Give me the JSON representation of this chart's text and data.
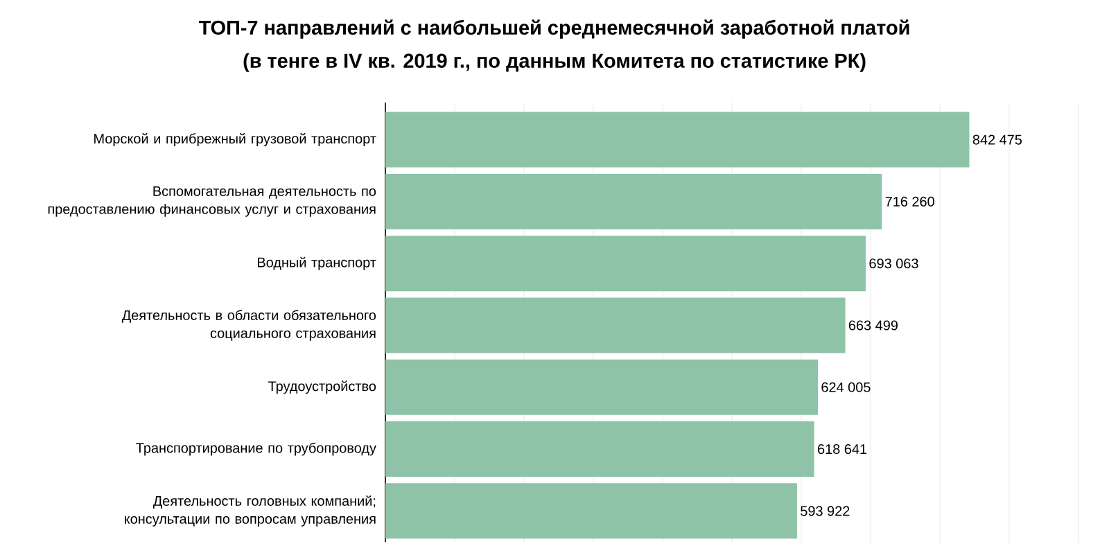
{
  "chart_data": {
    "type": "bar",
    "orientation": "horizontal",
    "title": "ТОП-7 направлений с наибольшей среднемесячной заработной платой",
    "subtitle": "(в тенге в IV кв. 2019 г., по данным Комитета по статистике РК)",
    "categories": [
      "Морской и прибрежный грузовой транспорт",
      "Вспомогательная деятельность по предоставлению финансовых услуг и страхования",
      "Водный транспорт",
      "Деятельность в области обязательного социального страхования",
      "Трудоустройство",
      "Транспортирование по трубопроводу",
      "Деятельность головных компаний; консультации по вопросам управления"
    ],
    "values": [
      842475,
      716260,
      693063,
      663499,
      624005,
      618641,
      593922
    ],
    "value_labels": [
      "842 475",
      "716 260",
      "693 063",
      "663 499",
      "624 005",
      "618 641",
      "593 922"
    ],
    "color": "#8fc3a8",
    "xlim": [
      0,
      1000000
    ],
    "xticks": [
      {
        "value": 0,
        "label": null
      },
      {
        "value": 100000,
        "label": null
      },
      {
        "value": 200000,
        "label": null
      },
      {
        "value": 300000,
        "label": null
      },
      {
        "value": 400000,
        "label": null
      },
      {
        "value": 500000,
        "label": null
      },
      {
        "value": 600000,
        "label": null
      },
      {
        "value": 700000,
        "label": null
      },
      {
        "value": 800000,
        "label": null
      },
      {
        "value": 900000,
        "label": null
      },
      {
        "value": 1000000,
        "label": null
      }
    ],
    "grid": "x"
  }
}
